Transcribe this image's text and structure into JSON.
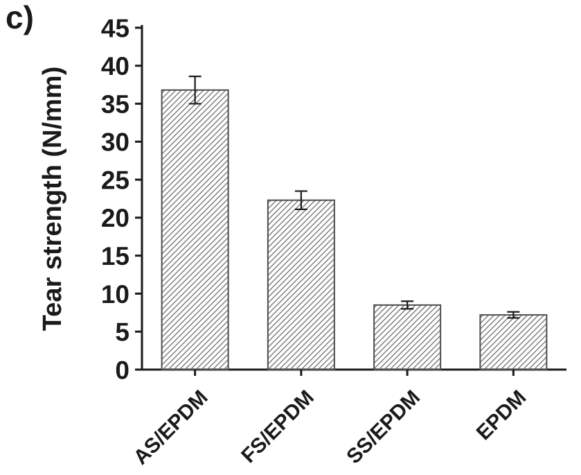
{
  "panel": {
    "label": "c)"
  },
  "chart_data": {
    "type": "bar",
    "categories": [
      "AS/EPDM",
      "FS/EPDM",
      "SS/EPDM",
      "EPDM"
    ],
    "values": [
      36.8,
      22.3,
      8.5,
      7.2
    ],
    "errors": [
      1.8,
      1.2,
      0.5,
      0.4
    ],
    "title": "",
    "xlabel": "",
    "ylabel": "Tear strength (N/mm)",
    "ylim": [
      0,
      45
    ],
    "yticks": [
      0,
      5,
      10,
      15,
      20,
      25,
      30,
      35,
      40,
      45
    ],
    "legend": "none",
    "grid": "off",
    "bar_fill": "hatched",
    "hatch_style": "diagonal-forward",
    "hatch_color": "#757575",
    "bar_stroke": "#4d4d4d",
    "axis_color": "#1a1a1a",
    "text_color": "#1a1a1a"
  }
}
